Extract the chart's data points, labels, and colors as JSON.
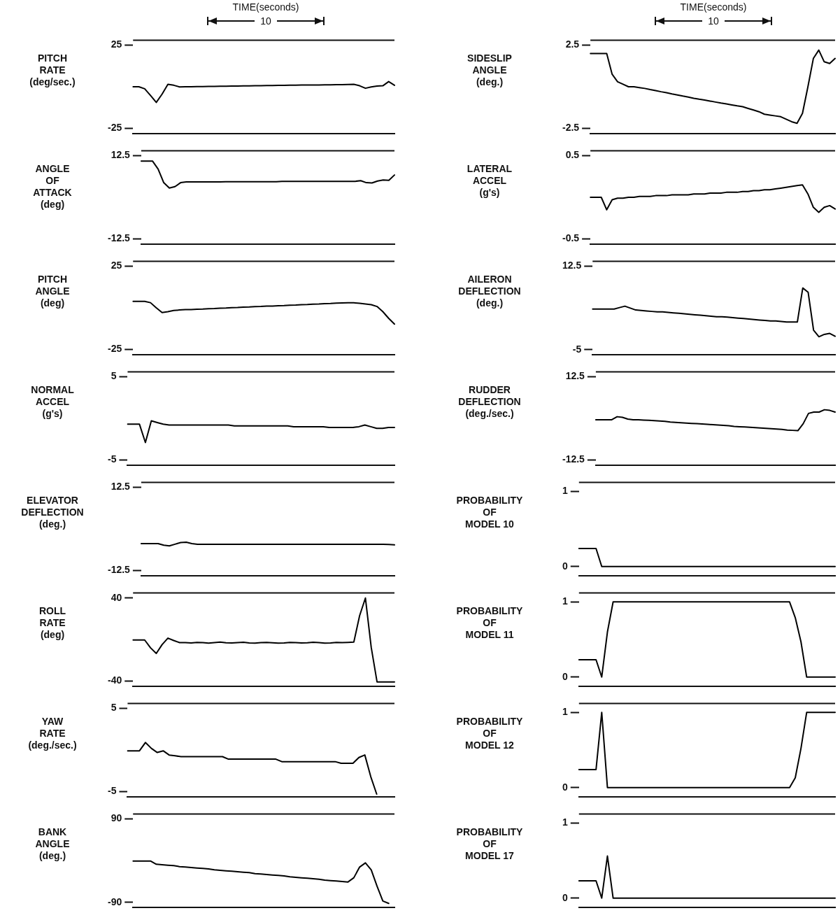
{
  "chart_data": [
    {
      "type": "line",
      "title": "TIME(seconds)",
      "annotations": [
        "10"
      ],
      "ylabel": "PITCH\nRATE\n(deg/sec.)",
      "tick_labels": "y",
      "ylim": [
        -28,
        28
      ],
      "yticks": [
        -25,
        25
      ],
      "categories": [
        null,
        null,
        null,
        null,
        null,
        null,
        null,
        null,
        null,
        null,
        null,
        null,
        null,
        null,
        null,
        null,
        null,
        null,
        null,
        null,
        null,
        null,
        null,
        null,
        null,
        null,
        null,
        null,
        null,
        null,
        null,
        null,
        null,
        null,
        null,
        null,
        null,
        null,
        null,
        null,
        null,
        null,
        null,
        null,
        null,
        null
      ],
      "series": [
        {
          "color": "#000000",
          "values": [
            0,
            0,
            -1.2,
            -5.2,
            -9.4,
            -4.4,
            1.5,
            0.9,
            -0.1,
            0,
            0,
            0.1,
            0.1,
            0.2,
            0.2,
            0.3,
            0.3,
            0.4,
            0.4,
            0.5,
            0.5,
            0.6,
            0.6,
            0.7,
            0.7,
            0.8,
            0.8,
            0.9,
            0.9,
            1.0,
            1.0,
            1.1,
            1.1,
            1.2,
            1.2,
            1.3,
            1.3,
            1.4,
            1.5,
            0.6,
            -0.9,
            -0.1,
            0.4,
            0.6,
            3.1,
            0.9
          ]
        }
      ]
    },
    {
      "type": "line",
      "ylabel": "ANGLE\nOF\nATTACK\n(deg)",
      "tick_labels": "y",
      "ylim": [
        -14,
        14
      ],
      "yticks": [
        -12.5,
        12.5
      ],
      "categories": [
        null,
        null,
        null,
        null,
        null,
        null,
        null,
        null,
        null,
        null,
        null,
        null,
        null,
        null,
        null,
        null,
        null,
        null,
        null,
        null,
        null,
        null,
        null,
        null,
        null,
        null,
        null,
        null,
        null,
        null,
        null,
        null,
        null,
        null,
        null,
        null,
        null,
        null,
        null,
        null,
        null,
        null,
        null,
        null,
        null,
        null
      ],
      "series": [
        {
          "color": "#000000",
          "values": [
            10.9,
            10.9,
            10.9,
            8.5,
            4.4,
            2.8,
            3.2,
            4.4,
            4.6,
            4.6,
            4.6,
            4.6,
            4.6,
            4.6,
            4.6,
            4.7,
            4.7,
            4.7,
            4.7,
            4.7,
            4.7,
            4.7,
            4.7,
            4.7,
            4.7,
            4.8,
            4.8,
            4.8,
            4.8,
            4.8,
            4.8,
            4.8,
            4.8,
            4.8,
            4.8,
            4.8,
            4.8,
            4.8,
            4.8,
            5.0,
            4.4,
            4.3,
            4.9,
            5.2,
            5.1,
            6.7
          ]
        }
      ]
    },
    {
      "type": "line",
      "ylabel": "PITCH\nANGLE\n(deg)",
      "tick_labels": "y",
      "ylim": [
        -28,
        28
      ],
      "yticks": [
        -25,
        25
      ],
      "categories": [
        null,
        null,
        null,
        null,
        null,
        null,
        null,
        null,
        null,
        null,
        null,
        null,
        null,
        null,
        null,
        null,
        null,
        null,
        null,
        null,
        null,
        null,
        null,
        null,
        null,
        null,
        null,
        null,
        null,
        null,
        null,
        null,
        null,
        null,
        null,
        null,
        null,
        null,
        null,
        null,
        null,
        null,
        null,
        null,
        null,
        null
      ],
      "series": [
        {
          "color": "#000000",
          "values": [
            3.9,
            3.9,
            3.9,
            3.1,
            0,
            -2.8,
            -2.3,
            -1.6,
            -1.3,
            -1.1,
            -1.0,
            -0.8,
            -0.7,
            -0.5,
            -0.4,
            -0.2,
            -0.1,
            0.1,
            0.2,
            0.4,
            0.5,
            0.7,
            0.8,
            1.0,
            1.1,
            1.3,
            1.4,
            1.6,
            1.7,
            1.9,
            2.0,
            2.2,
            2.3,
            2.5,
            2.6,
            2.8,
            2.9,
            3.0,
            3.0,
            2.7,
            2.3,
            1.9,
            0.8,
            -2.3,
            -6.3,
            -9.8
          ]
        }
      ]
    },
    {
      "type": "line",
      "ylabel": "NORMAL\nACCEL\n(g's)",
      "tick_labels": "y",
      "ylim": [
        -5.6,
        5.6
      ],
      "yticks": [
        -5,
        5
      ],
      "categories": [
        null,
        null,
        null,
        null,
        null,
        null,
        null,
        null,
        null,
        null,
        null,
        null,
        null,
        null,
        null,
        null,
        null,
        null,
        null,
        null,
        null,
        null,
        null,
        null,
        null,
        null,
        null,
        null,
        null,
        null,
        null,
        null,
        null,
        null,
        null,
        null,
        null,
        null,
        null,
        null,
        null,
        null,
        null,
        null,
        null,
        null
      ],
      "series": [
        {
          "color": "#000000",
          "values": [
            -0.7,
            -0.7,
            -0.7,
            -2.9,
            -0.3,
            -0.5,
            -0.7,
            -0.8,
            -0.8,
            -0.8,
            -0.8,
            -0.8,
            -0.8,
            -0.8,
            -0.8,
            -0.8,
            -0.8,
            -0.8,
            -0.9,
            -0.9,
            -0.9,
            -0.9,
            -0.9,
            -0.9,
            -0.9,
            -0.9,
            -0.9,
            -0.9,
            -1.0,
            -1.0,
            -1.0,
            -1.0,
            -1.0,
            -1.0,
            -1.1,
            -1.1,
            -1.1,
            -1.1,
            -1.1,
            -1.0,
            -0.8,
            -1.0,
            -1.2,
            -1.2,
            -1.1,
            -1.1
          ]
        }
      ]
    },
    {
      "type": "line",
      "ylabel": "ELEVATOR\nDEFLECTION\n(deg.)",
      "tick_labels": "y",
      "ylim": [
        -14,
        14
      ],
      "yticks": [
        -12.5,
        12.5
      ],
      "categories": [
        null,
        null,
        null,
        null,
        null,
        null,
        null,
        null,
        null,
        null,
        null,
        null,
        null,
        null,
        null,
        null,
        null,
        null,
        null,
        null,
        null,
        null,
        null,
        null,
        null,
        null,
        null,
        null,
        null,
        null,
        null,
        null,
        null,
        null,
        null,
        null,
        null,
        null,
        null,
        null,
        null,
        null,
        null,
        null,
        null,
        null
      ],
      "series": [
        {
          "color": "#000000",
          "values": [
            -4.4,
            -4.4,
            -4.4,
            -4.4,
            -4.9,
            -5.1,
            -4.6,
            -4.1,
            -4.0,
            -4.4,
            -4.6,
            -4.6,
            -4.6,
            -4.6,
            -4.6,
            -4.6,
            -4.6,
            -4.6,
            -4.6,
            -4.6,
            -4.6,
            -4.6,
            -4.6,
            -4.6,
            -4.6,
            -4.6,
            -4.6,
            -4.6,
            -4.6,
            -4.6,
            -4.6,
            -4.6,
            -4.6,
            -4.6,
            -4.6,
            -4.6,
            -4.6,
            -4.6,
            -4.6,
            -4.6,
            -4.6,
            -4.6,
            -4.6,
            -4.6,
            -4.7,
            -4.8
          ]
        }
      ]
    },
    {
      "type": "line",
      "ylabel": "ROLL\nRATE\n(deg)",
      "tick_labels": "y",
      "ylim": [
        -45,
        45
      ],
      "yticks": [
        -40,
        40
      ],
      "categories": [
        null,
        null,
        null,
        null,
        null,
        null,
        null,
        null,
        null,
        null,
        null,
        null,
        null,
        null,
        null,
        null,
        null,
        null,
        null,
        null,
        null,
        null,
        null,
        null,
        null,
        null,
        null,
        null,
        null,
        null,
        null,
        null,
        null,
        null,
        null,
        null,
        null,
        null,
        null,
        null,
        null,
        null,
        null,
        null,
        null,
        null
      ],
      "series": [
        {
          "color": "#000000",
          "values": [
            -0.5,
            -0.5,
            -0.5,
            -8,
            -13.5,
            -5,
            1.3,
            -1,
            -3,
            -3.1,
            -3.4,
            -2.8,
            -3.1,
            -3.6,
            -3.0,
            -2.6,
            -3.2,
            -3.4,
            -3.0,
            -2.7,
            -3.3,
            -3.5,
            -3.1,
            -2.9,
            -3.2,
            -3.6,
            -3.3,
            -2.8,
            -3.0,
            -3.4,
            -3.2,
            -2.7,
            -3.1,
            -3.5,
            -3.3,
            -2.9,
            -3.0,
            -2.8,
            -2.6,
            23,
            40,
            -7.7,
            -41,
            -41,
            -41,
            -41
          ]
        }
      ]
    },
    {
      "type": "line",
      "ylabel": "YAW\nRATE\n(deg./sec.)",
      "tick_labels": "y",
      "ylim": [
        -5.6,
        5.6
      ],
      "yticks": [
        -5,
        5
      ],
      "categories": [
        null,
        null,
        null,
        null,
        null,
        null,
        null,
        null,
        null,
        null,
        null,
        null,
        null,
        null,
        null,
        null,
        null,
        null,
        null,
        null,
        null,
        null,
        null,
        null,
        null,
        null,
        null,
        null,
        null,
        null,
        null,
        null,
        null,
        null,
        null,
        null,
        null,
        null,
        null,
        null,
        null,
        null,
        null,
        null,
        null,
        null
      ],
      "series": [
        {
          "color": "#000000",
          "values": [
            -0.1,
            -0.1,
            -0.1,
            0.9,
            0.2,
            -0.3,
            -0.1,
            -0.6,
            -0.7,
            -0.8,
            -0.8,
            -0.8,
            -0.8,
            -0.8,
            -0.8,
            -0.8,
            -0.8,
            -1.1,
            -1.1,
            -1.1,
            -1.1,
            -1.1,
            -1.1,
            -1.1,
            -1.1,
            -1.1,
            -1.4,
            -1.4,
            -1.4,
            -1.4,
            -1.4,
            -1.4,
            -1.4,
            -1.4,
            -1.4,
            -1.4,
            -1.6,
            -1.6,
            -1.6,
            -0.9,
            -0.6,
            -3.2,
            -5.3,
            null,
            null,
            null
          ]
        }
      ]
    },
    {
      "type": "line",
      "ylabel": "BANK\nANGLE\n(deg.)",
      "tick_labels": "y",
      "ylim": [
        -100,
        100
      ],
      "yticks": [
        -90,
        90
      ],
      "categories": [
        null,
        null,
        null,
        null,
        null,
        null,
        null,
        null,
        null,
        null,
        null,
        null,
        null,
        null,
        null,
        null,
        null,
        null,
        null,
        null,
        null,
        null,
        null,
        null,
        null,
        null,
        null,
        null,
        null,
        null,
        null,
        null,
        null,
        null,
        null,
        null,
        null,
        null,
        null,
        null,
        null,
        null,
        null,
        null,
        null,
        null
      ],
      "series": [
        {
          "color": "#000000",
          "values": [
            -1,
            -1,
            -1,
            -1,
            -8,
            -9,
            -10,
            -11,
            -13,
            -14,
            -15,
            -16,
            -17,
            -18,
            -20,
            -21,
            -22,
            -23,
            -24,
            -25,
            -26,
            -28,
            -29,
            -30,
            -31,
            -32,
            -33,
            -35,
            -36,
            -37,
            -38,
            -39,
            -40,
            -42,
            -43,
            -44,
            -45,
            -46,
            -37,
            -14,
            -5,
            -20,
            -55,
            -87,
            -92,
            null
          ]
        }
      ]
    },
    {
      "type": "line",
      "title": "TIME(seconds)",
      "annotations": [
        "10"
      ],
      "ylabel": "SIDESLIP\nANGLE\n(deg.)",
      "tick_labels": "y",
      "ylim": [
        -2.8,
        2.8
      ],
      "yticks": [
        -2.5,
        2.5
      ],
      "categories": [
        null,
        null,
        null,
        null,
        null,
        null,
        null,
        null,
        null,
        null,
        null,
        null,
        null,
        null,
        null,
        null,
        null,
        null,
        null,
        null,
        null,
        null,
        null,
        null,
        null,
        null,
        null,
        null,
        null,
        null,
        null,
        null,
        null,
        null,
        null,
        null,
        null,
        null,
        null,
        null,
        null,
        null,
        null,
        null,
        null,
        null
      ],
      "series": [
        {
          "color": "#000000",
          "values": [
            2.0,
            2.0,
            2.0,
            2.0,
            0.75,
            0.3,
            0.15,
            0,
            0,
            -0.05,
            -0.1,
            -0.17,
            -0.23,
            -0.3,
            -0.36,
            -0.43,
            -0.49,
            -0.56,
            -0.62,
            -0.69,
            -0.75,
            -0.8,
            -0.86,
            -0.92,
            -0.98,
            -1.03,
            -1.09,
            -1.15,
            -1.2,
            -1.3,
            -1.4,
            -1.5,
            -1.65,
            -1.7,
            -1.75,
            -1.8,
            -1.95,
            -2.1,
            -2.2,
            -1.6,
            0,
            1.7,
            2.2,
            1.5,
            1.4,
            1.7
          ]
        }
      ]
    },
    {
      "type": "line",
      "ylabel": "LATERAL\nACCEL\n(g's)",
      "tick_labels": "y",
      "ylim": [
        -0.56,
        0.56
      ],
      "yticks": [
        -0.5,
        0.5
      ],
      "categories": [
        null,
        null,
        null,
        null,
        null,
        null,
        null,
        null,
        null,
        null,
        null,
        null,
        null,
        null,
        null,
        null,
        null,
        null,
        null,
        null,
        null,
        null,
        null,
        null,
        null,
        null,
        null,
        null,
        null,
        null,
        null,
        null,
        null,
        null,
        null,
        null,
        null,
        null,
        null,
        null,
        null,
        null,
        null,
        null,
        null,
        null
      ],
      "series": [
        {
          "color": "#000000",
          "values": [
            0,
            0,
            0,
            -0.15,
            -0.03,
            -0.01,
            -0.01,
            0,
            0,
            0.01,
            0.01,
            0.01,
            0.02,
            0.02,
            0.02,
            0.03,
            0.03,
            0.03,
            0.03,
            0.04,
            0.04,
            0.04,
            0.05,
            0.05,
            0.05,
            0.06,
            0.06,
            0.06,
            0.07,
            0.07,
            0.08,
            0.08,
            0.09,
            0.09,
            0.1,
            0.11,
            0.12,
            0.13,
            0.14,
            0.15,
            0.04,
            -0.12,
            -0.18,
            -0.12,
            -0.1,
            -0.14
          ]
        }
      ]
    },
    {
      "type": "line",
      "ylabel": "AILERON\nDEFLECTION\n(deg.)",
      "tick_labels": "y",
      "ylim": [
        -6,
        13.5
      ],
      "yticks": [
        -5,
        12.5
      ],
      "categories": [
        null,
        null,
        null,
        null,
        null,
        null,
        null,
        null,
        null,
        null,
        null,
        null,
        null,
        null,
        null,
        null,
        null,
        null,
        null,
        null,
        null,
        null,
        null,
        null,
        null,
        null,
        null,
        null,
        null,
        null,
        null,
        null,
        null,
        null,
        null,
        null,
        null,
        null,
        null,
        null,
        null,
        null,
        null,
        null,
        null,
        null
      ],
      "series": [
        {
          "color": "#000000",
          "values": [
            3.5,
            3.5,
            3.5,
            3.5,
            3.5,
            3.8,
            4.1,
            3.7,
            3.3,
            3.2,
            3.1,
            3.0,
            2.9,
            2.9,
            2.8,
            2.7,
            2.6,
            2.5,
            2.4,
            2.3,
            2.2,
            2.1,
            2.0,
            1.9,
            1.9,
            1.8,
            1.7,
            1.6,
            1.5,
            1.4,
            1.3,
            1.2,
            1.1,
            1.0,
            1.0,
            0.9,
            0.8,
            0.8,
            0.8,
            7.9,
            7.0,
            -0.9,
            -2.3,
            -1.8,
            -1.6,
            -2.2
          ]
        }
      ]
    },
    {
      "type": "line",
      "ylabel": "RUDDER\nDEFLECTION\n(deg./sec.)",
      "tick_labels": "y",
      "ylim": [
        -14,
        14
      ],
      "yticks": [
        -12.5,
        12.5
      ],
      "categories": [
        null,
        null,
        null,
        null,
        null,
        null,
        null,
        null,
        null,
        null,
        null,
        null,
        null,
        null,
        null,
        null,
        null,
        null,
        null,
        null,
        null,
        null,
        null,
        null,
        null,
        null,
        null,
        null,
        null,
        null,
        null,
        null,
        null,
        null,
        null,
        null,
        null,
        null,
        null,
        null,
        null,
        null,
        null,
        null,
        null,
        null
      ],
      "series": [
        {
          "color": "#000000",
          "values": [
            -0.4,
            -0.4,
            -0.4,
            -0.4,
            0.5,
            0.3,
            -0.2,
            -0.4,
            -0.4,
            -0.5,
            -0.6,
            -0.7,
            -0.8,
            -0.9,
            -1.1,
            -1.2,
            -1.3,
            -1.4,
            -1.5,
            -1.6,
            -1.7,
            -1.8,
            -1.9,
            -2.0,
            -2.1,
            -2.2,
            -2.4,
            -2.5,
            -2.6,
            -2.7,
            -2.8,
            -2.9,
            -3.0,
            -3.1,
            -3.2,
            -3.3,
            -3.5,
            -3.6,
            -3.7,
            -1.6,
            1.5,
            1.9,
            1.9,
            2.6,
            2.4,
            1.9
          ]
        }
      ]
    },
    {
      "type": "line",
      "ylabel": "PROBABILITY\nOF\nMODEL 10",
      "tick_labels": "y",
      "ylim": [
        -0.12,
        1.12
      ],
      "yticks": [
        0,
        1
      ],
      "categories": [
        null,
        null,
        null,
        null,
        null,
        null,
        null,
        null,
        null,
        null,
        null,
        null,
        null,
        null,
        null,
        null,
        null,
        null,
        null,
        null,
        null,
        null,
        null,
        null,
        null,
        null,
        null,
        null,
        null,
        null,
        null,
        null,
        null,
        null,
        null,
        null,
        null,
        null,
        null,
        null,
        null,
        null,
        null,
        null,
        null,
        null
      ],
      "series": [
        {
          "color": "#000000",
          "values": [
            0.24,
            0.24,
            0.24,
            0.24,
            0,
            0,
            0,
            0,
            0,
            0,
            0,
            0,
            0,
            0,
            0,
            0,
            0,
            0,
            0,
            0,
            0,
            0,
            0,
            0,
            0,
            0,
            0,
            0,
            0,
            0,
            0,
            0,
            0,
            0,
            0,
            0,
            0,
            0,
            0,
            0,
            0,
            0,
            0,
            0,
            0,
            0
          ]
        }
      ]
    },
    {
      "type": "line",
      "ylabel": "PROBABILITY\nOF\nMODEL 11",
      "tick_labels": "y",
      "ylim": [
        -0.12,
        1.12
      ],
      "yticks": [
        0,
        1
      ],
      "categories": [
        null,
        null,
        null,
        null,
        null,
        null,
        null,
        null,
        null,
        null,
        null,
        null,
        null,
        null,
        null,
        null,
        null,
        null,
        null,
        null,
        null,
        null,
        null,
        null,
        null,
        null,
        null,
        null,
        null,
        null,
        null,
        null,
        null,
        null,
        null,
        null,
        null,
        null,
        null,
        null,
        null,
        null,
        null,
        null,
        null,
        null
      ],
      "series": [
        {
          "color": "#000000",
          "values": [
            0.23,
            0.23,
            0.23,
            0.23,
            0,
            0.6,
            1,
            1,
            1,
            1,
            1,
            1,
            1,
            1,
            1,
            1,
            1,
            1,
            1,
            1,
            1,
            1,
            1,
            1,
            1,
            1,
            1,
            1,
            1,
            1,
            1,
            1,
            1,
            1,
            1,
            1,
            1,
            1,
            0.79,
            0.47,
            0,
            0,
            0,
            0,
            0,
            0
          ]
        }
      ]
    },
    {
      "type": "line",
      "ylabel": "PROBABILITY\nOF\nMODEL 12",
      "tick_labels": "y",
      "ylim": [
        -0.12,
        1.12
      ],
      "yticks": [
        0,
        1
      ],
      "categories": [
        null,
        null,
        null,
        null,
        null,
        null,
        null,
        null,
        null,
        null,
        null,
        null,
        null,
        null,
        null,
        null,
        null,
        null,
        null,
        null,
        null,
        null,
        null,
        null,
        null,
        null,
        null,
        null,
        null,
        null,
        null,
        null,
        null,
        null,
        null,
        null,
        null,
        null,
        null,
        null,
        null,
        null,
        null,
        null,
        null,
        null
      ],
      "series": [
        {
          "color": "#000000",
          "values": [
            0.24,
            0.24,
            0.24,
            0.24,
            1,
            0,
            0,
            0,
            0,
            0,
            0,
            0,
            0,
            0,
            0,
            0,
            0,
            0,
            0,
            0,
            0,
            0,
            0,
            0,
            0,
            0,
            0,
            0,
            0,
            0,
            0,
            0,
            0,
            0,
            0,
            0,
            0,
            0,
            0.13,
            0.52,
            1,
            1,
            1,
            1,
            1,
            1
          ]
        }
      ]
    },
    {
      "type": "line",
      "ylabel": "PROBABILITY\nOF\nMODEL 17",
      "tick_labels": "y",
      "ylim": [
        -0.12,
        1.12
      ],
      "yticks": [
        0,
        1
      ],
      "categories": [
        null,
        null,
        null,
        null,
        null,
        null,
        null,
        null,
        null,
        null,
        null,
        null,
        null,
        null,
        null,
        null,
        null,
        null,
        null,
        null,
        null,
        null,
        null,
        null,
        null,
        null,
        null,
        null,
        null,
        null,
        null,
        null,
        null,
        null,
        null,
        null,
        null,
        null,
        null,
        null,
        null,
        null,
        null,
        null,
        null,
        null
      ],
      "series": [
        {
          "color": "#000000",
          "values": [
            0.23,
            0.23,
            0.23,
            0.23,
            0,
            0.56,
            0,
            0,
            0,
            0,
            0,
            0,
            0,
            0,
            0,
            0,
            0,
            0,
            0,
            0,
            0,
            0,
            0,
            0,
            0,
            0,
            0,
            0,
            0,
            0,
            0,
            0,
            0,
            0,
            0,
            0,
            0,
            0,
            0,
            0,
            0,
            0,
            0,
            0,
            0,
            0
          ]
        }
      ]
    }
  ]
}
